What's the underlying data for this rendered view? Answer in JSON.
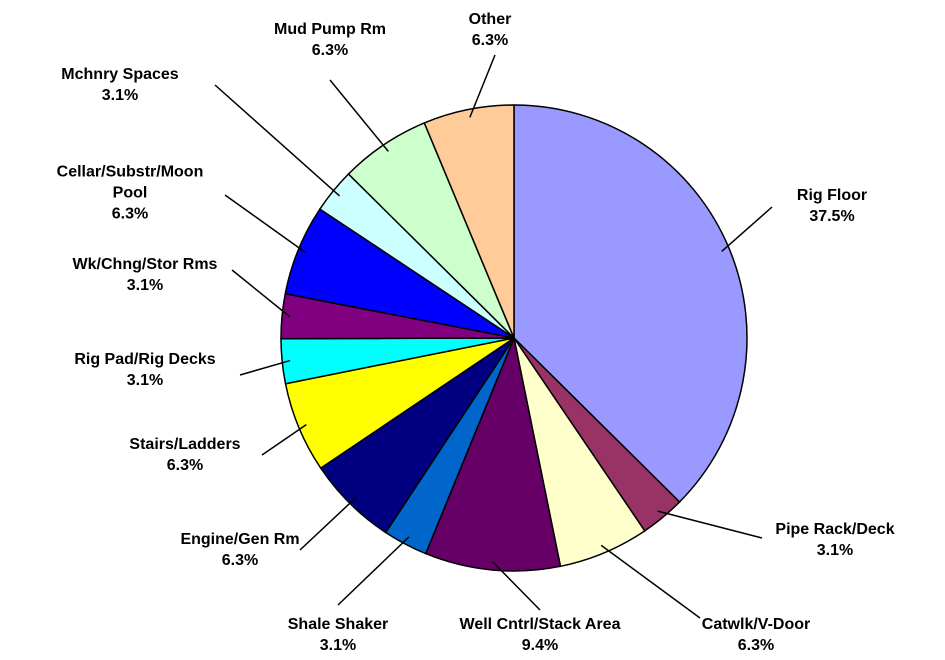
{
  "chart_data": {
    "type": "pie",
    "categories": [
      "Rig Floor",
      "Pipe Rack/Deck",
      "Catwlk/V-Door",
      "Well Cntrl/Stack Area",
      "Shale Shaker",
      "Engine/Gen Rm",
      "Stairs/Ladders",
      "Rig Pad/Rig Decks",
      "Wk/Chng/Stor Rms",
      "Cellar/Substr/Moon Pool",
      "Mchnry Spaces",
      "Mud Pump Rm",
      "Other"
    ],
    "values": [
      37.5,
      3.1,
      6.3,
      9.4,
      3.1,
      6.3,
      6.3,
      3.1,
      3.1,
      6.3,
      3.1,
      6.3,
      6.3
    ],
    "value_labels": [
      "37.5%",
      "3.1%",
      "6.3%",
      "9.4%",
      "3.1%",
      "6.3%",
      "6.3%",
      "3.1%",
      "3.1%",
      "6.3%",
      "3.1%",
      "6.3%",
      "6.3%"
    ],
    "colors": [
      "#9999ff",
      "#993366",
      "#ffffcc",
      "#660066",
      "#0066cc",
      "#000080",
      "#ffff00",
      "#00ffff",
      "#800080",
      "#0000ff",
      "#ccffff",
      "#ccffcc",
      "#ffcc99"
    ]
  }
}
